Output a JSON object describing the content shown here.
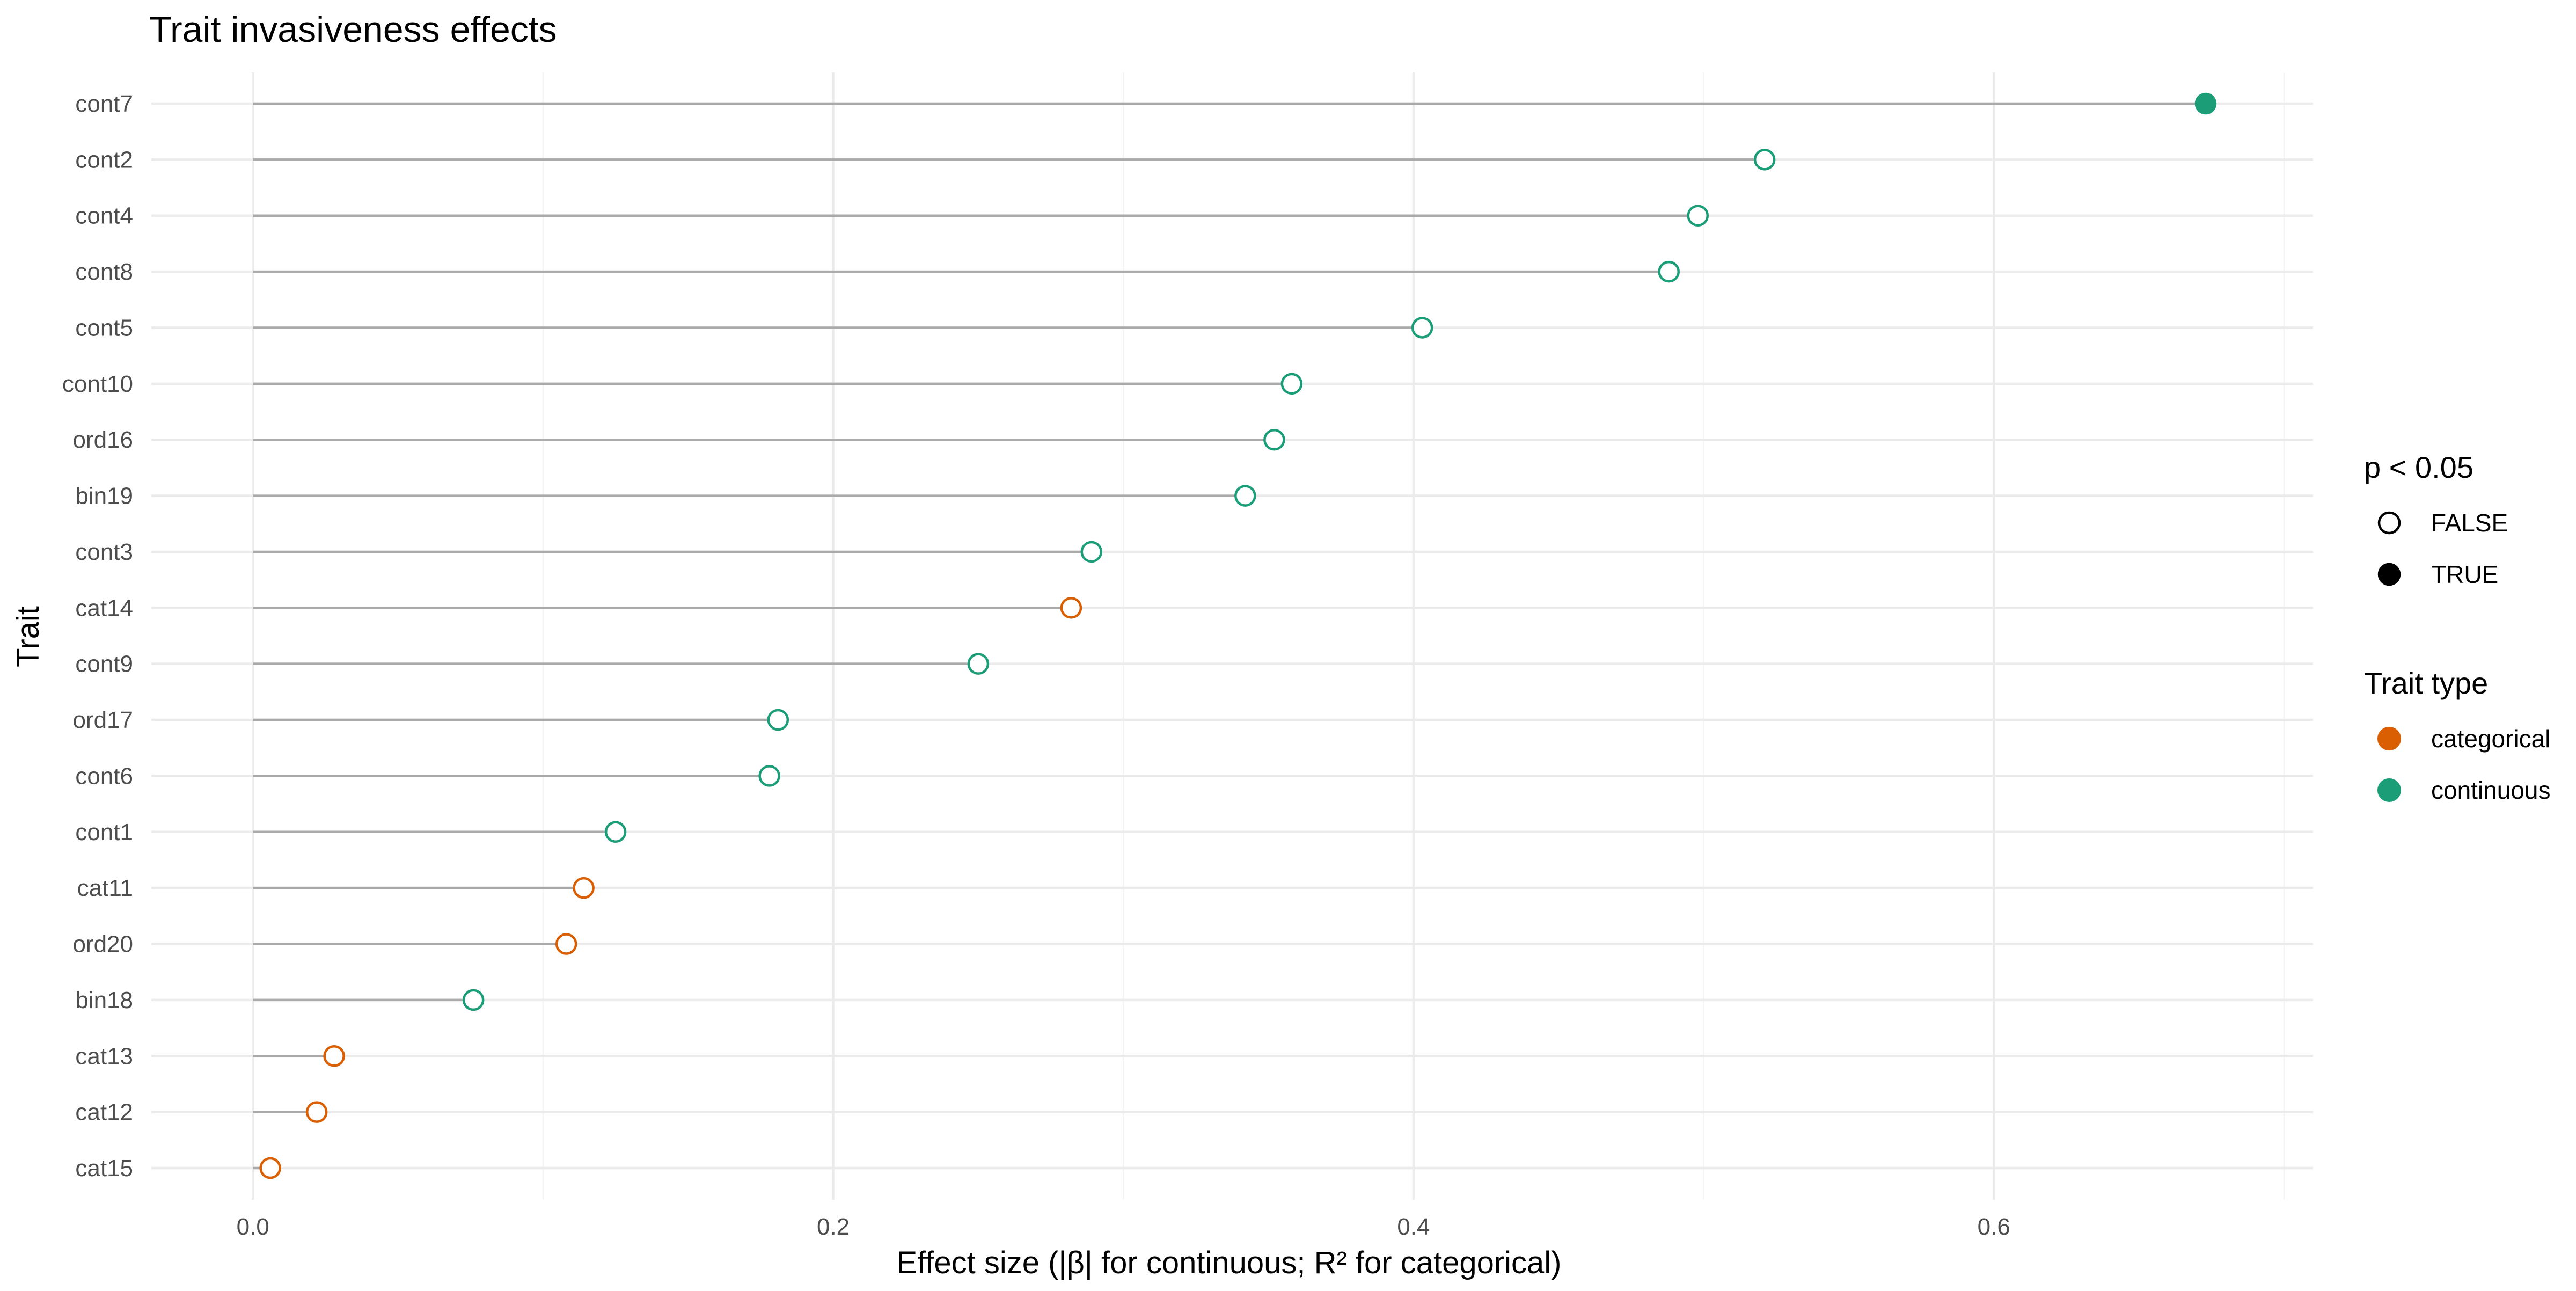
{
  "chart_data": {
    "type": "lollipop",
    "title": "Trait invasiveness effects",
    "xlabel": "Effect size (|β| for continuous; R² for categorical)",
    "ylabel": "Trait",
    "xlim": [
      -0.035,
      0.71
    ],
    "x_ticks": [
      0.0,
      0.2,
      0.4,
      0.6
    ],
    "x_tick_labels": [
      "0.0",
      "0.2",
      "0.4",
      "0.6"
    ],
    "x_minor_ticks": [
      0.1,
      0.3,
      0.5,
      0.7
    ],
    "grid": true,
    "legend_position": "right",
    "colors": {
      "categorical": "#D95F02",
      "continuous": "#1B9E77",
      "stem": "#aaaaaa",
      "legend_shape": "#000000"
    },
    "points": [
      {
        "trait": "cont7",
        "value": 0.673,
        "type": "continuous",
        "significant": true
      },
      {
        "trait": "cont2",
        "value": 0.521,
        "type": "continuous",
        "significant": false
      },
      {
        "trait": "cont4",
        "value": 0.498,
        "type": "continuous",
        "significant": false
      },
      {
        "trait": "cont8",
        "value": 0.488,
        "type": "continuous",
        "significant": false
      },
      {
        "trait": "cont5",
        "value": 0.403,
        "type": "continuous",
        "significant": false
      },
      {
        "trait": "cont10",
        "value": 0.358,
        "type": "continuous",
        "significant": false
      },
      {
        "trait": "ord16",
        "value": 0.352,
        "type": "continuous",
        "significant": false
      },
      {
        "trait": "bin19",
        "value": 0.342,
        "type": "continuous",
        "significant": false
      },
      {
        "trait": "cont3",
        "value": 0.289,
        "type": "continuous",
        "significant": false
      },
      {
        "trait": "cat14",
        "value": 0.282,
        "type": "categorical",
        "significant": false
      },
      {
        "trait": "cont9",
        "value": 0.25,
        "type": "continuous",
        "significant": false
      },
      {
        "trait": "ord17",
        "value": 0.181,
        "type": "continuous",
        "significant": false
      },
      {
        "trait": "cont6",
        "value": 0.178,
        "type": "continuous",
        "significant": false
      },
      {
        "trait": "cont1",
        "value": 0.125,
        "type": "continuous",
        "significant": false
      },
      {
        "trait": "cat11",
        "value": 0.114,
        "type": "categorical",
        "significant": false
      },
      {
        "trait": "ord20",
        "value": 0.108,
        "type": "categorical",
        "significant": false
      },
      {
        "trait": "bin18",
        "value": 0.076,
        "type": "continuous",
        "significant": false
      },
      {
        "trait": "cat13",
        "value": 0.028,
        "type": "categorical",
        "significant": false
      },
      {
        "trait": "cat12",
        "value": 0.022,
        "type": "categorical",
        "significant": false
      },
      {
        "trait": "cat15",
        "value": 0.006,
        "type": "categorical",
        "significant": false
      }
    ],
    "legends": [
      {
        "title": "p < 0.05",
        "kind": "shape",
        "items": [
          {
            "label": "FALSE",
            "filled": false
          },
          {
            "label": "TRUE",
            "filled": true
          }
        ]
      },
      {
        "title": "Trait type",
        "kind": "color",
        "items": [
          {
            "label": "categorical",
            "color_key": "categorical"
          },
          {
            "label": "continuous",
            "color_key": "continuous"
          }
        ]
      }
    ]
  }
}
